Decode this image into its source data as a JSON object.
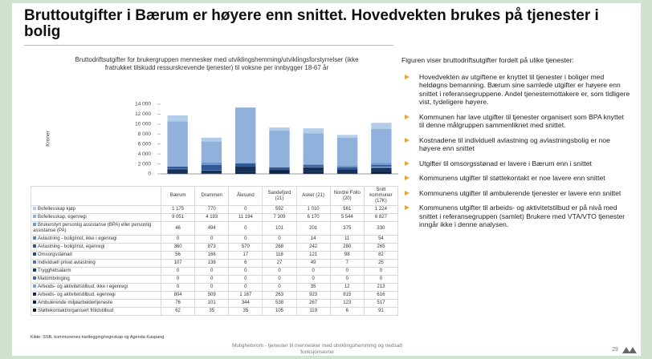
{
  "title": "Bruttoutgifter i Bærum er høyere enn snittet. Hovedvekten brukes på tjenester i bolig",
  "chart_data": {
    "type": "bar",
    "stacked": true,
    "title": "Bruttodriftsutgifter for brukergruppen mennesker med utviklingshemming/utviklingsforstyrrelser (ikke fratrukket tilskudd ressurskrevende tjenester) til voksne per innbygger 18-67 år",
    "ylabel": "Kroner",
    "categories": [
      "Bærum",
      "Drammen",
      "Ålesund",
      "Sandefjord (21)",
      "Asker (21)",
      "Nordre Follo (20)",
      "Snitt kommuner (17K)"
    ],
    "series": [
      {
        "name": "Bofellesskap kjøp",
        "color": "#b4cde9",
        "values": [
          1175,
          770,
          0,
          592,
          1010,
          561,
          1224
        ],
        "value_labels": [
          "1 175",
          "770",
          "0",
          "592",
          "1 010",
          "561",
          "1 224"
        ]
      },
      {
        "name": "Bofellesskap, egenregi",
        "color": "#8fb1dc",
        "values": [
          9051,
          4193,
          11194,
          7309,
          6170,
          5544,
          6827
        ],
        "value_labels": [
          "9 051",
          "4 193",
          "11 194",
          "7 309",
          "6 170",
          "5 544",
          "6 827"
        ]
      },
      {
        "name": "Brukerstyrt  personlig assistanse (BPA) eller personlig assistanse (PA)",
        "color": "#6e96cc",
        "values": [
          46,
          494,
          0,
          101,
          201,
          375,
          330
        ]
      },
      {
        "name": "Avlastning - bolig/inst, ikke i egenregi",
        "color": "#5a84bf",
        "values": [
          0,
          0,
          0,
          0,
          14,
          11,
          54
        ]
      },
      {
        "name": "Avlastning - bolig/inst, egenregi",
        "color": "#2f5a97",
        "values": [
          360,
          873,
          570,
          268,
          242,
          280,
          265
        ]
      },
      {
        "name": "Omsorgsstønad",
        "color": "#24487a",
        "values": [
          56,
          166,
          17,
          118,
          121,
          98,
          82
        ]
      },
      {
        "name": "Individuell privat avlastning",
        "color": "#4a76b0",
        "values": [
          107,
          138,
          6,
          27,
          49,
          7,
          25
        ]
      },
      {
        "name": "Trygghetsalarm",
        "color": "#1d3a66",
        "values": [
          0,
          0,
          0,
          0,
          0,
          0,
          0
        ]
      },
      {
        "name": "Matombringing",
        "color": "#3d68a6",
        "values": [
          0,
          0,
          0,
          0,
          0,
          0,
          0
        ]
      },
      {
        "name": "Arbeids- og aktivitetstilbud, ikke i egenregi",
        "color": "#7fa2d2",
        "values": [
          0,
          0,
          0,
          0,
          35,
          12,
          213
        ]
      },
      {
        "name": "Arbeids- og aktivitetstilbud, egenregi",
        "color": "#15305a",
        "values": [
          804,
          509,
          1167,
          263,
          923,
          815,
          616
        ],
        "value_labels": [
          "804",
          "509",
          "1 167",
          "263",
          "923",
          "815",
          "616"
        ]
      },
      {
        "name": "Ambulerende miljøarbeidertjeneste",
        "color": "#0e2445",
        "values": [
          76,
          101,
          344,
          538,
          267,
          123,
          517
        ]
      },
      {
        "name": "Støttekontakt/organisert fritidstilbud",
        "color": "#091a33",
        "values": [
          62,
          35,
          35,
          105,
          119,
          6,
          91
        ]
      }
    ],
    "ylim": [
      0,
      14000
    ],
    "yticks": [
      0,
      {
        "value": 2000,
        "label": "2 000"
      },
      {
        "value": 4000,
        "label": "4 000"
      },
      {
        "value": 6000,
        "label": "6 000"
      },
      {
        "value": 8000,
        "label": "8 000"
      },
      {
        "value": 10000,
        "label": "10 000"
      },
      {
        "value": 12000,
        "label": "12 000"
      },
      {
        "value": 14000,
        "label": "14 000"
      }
    ]
  },
  "text": {
    "intro": "Figuren viser bruttodriftsutgifter fordelt på ulike tjenester:",
    "bullets": [
      "Hovedvekten av utgiftene er knyttet til tjenester i boliger med heldøgns bemanning. Bærum sine samlede utgifter er høyere enn snittet i referansegruppene. Andel tjenestemottakere er, som tidligere vist, tydeligere høyere.",
      "Kommunen har lave utgifter til tjenester organisert som BPA knyttet til denne målgruppen sammenliknet med snittet.",
      "Kostnadene til individuell avlastning og avlastningsbolig er noe høyere enn snittet",
      "Utgifter til omsorgsstønad er lavere i Bærum enn i snittet",
      "Kommunens utgifter til støttekontakt er noe lavere enn snittet",
      "Kommunens utgifter til ambulerende tjenester er lavere enn snittet",
      "Kommunens utgifter til arbeids- og aktivitetstilbud er på nivå med snittet i referansegruppen (samlet) Brukere med VTA/VTO tjenester inngår ikke i denne analysen."
    ]
  },
  "source": "Kilde: SSB, kommunenes kartlegging/regnskap og Agenda Kaupang",
  "footer": "Mulighetsrom - tjenester til mennesker med utviklingshemming og nedsatt funksjonsevne",
  "page_number": "29"
}
